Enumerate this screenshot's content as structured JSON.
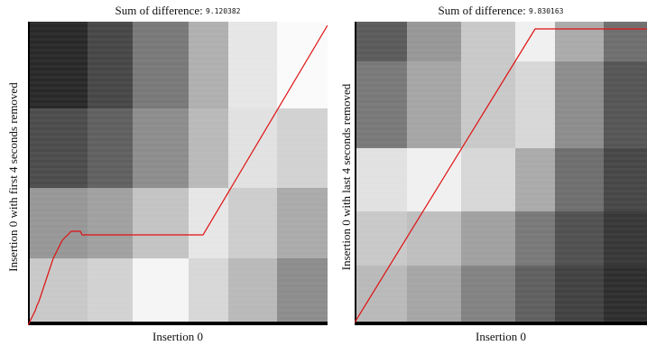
{
  "panels": [
    {
      "title_prefix": "Sum of difference: ",
      "title_value": "9.120382",
      "xlabel": "Insertion 0",
      "ylabel": "Insertion 0 with first 4 seconds removed"
    },
    {
      "title_prefix": "Sum of difference: ",
      "title_value": "9.830163",
      "xlabel": "Insertion 0",
      "ylabel": "Insertion 0 with last 4 seconds removed"
    }
  ],
  "colors": {
    "path": "#e01010",
    "axis": "#000000"
  }
}
